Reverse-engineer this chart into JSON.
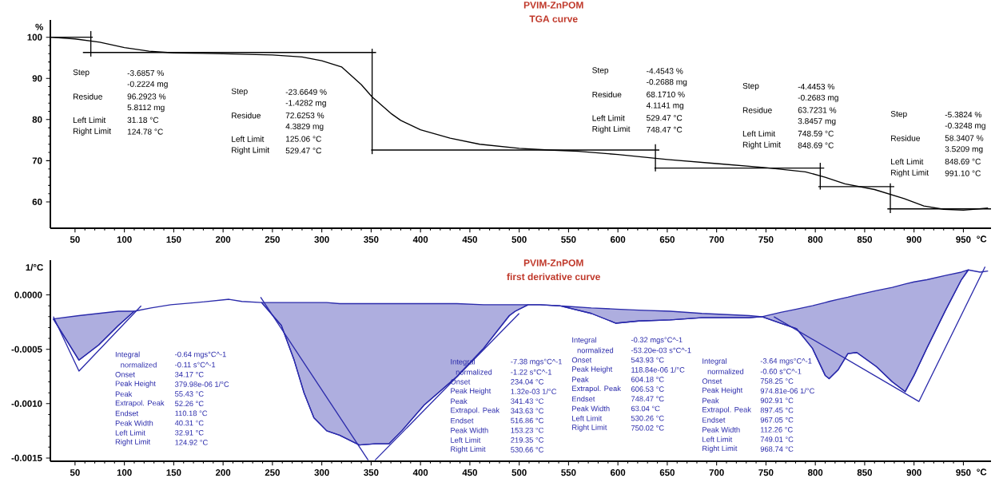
{
  "chart_data": [
    {
      "type": "line",
      "title": "PVIM-ZnPOM",
      "subtitle": "TGA curve",
      "xlabel": "°C",
      "ylabel": "%",
      "xlim": [
        25,
        978
      ],
      "ylim": [
        53.6,
        104.2
      ],
      "xticks": [
        50,
        100,
        150,
        200,
        250,
        300,
        350,
        400,
        450,
        500,
        550,
        600,
        650,
        700,
        750,
        800,
        850,
        900,
        950
      ],
      "yticks": [
        60,
        70,
        80,
        90,
        100
      ],
      "series": [
        {
          "color": "#000000",
          "x": [
            25,
            50,
            75,
            100,
            125,
            150,
            200,
            250,
            280,
            300,
            320,
            340,
            351,
            370,
            380,
            400,
            430,
            460,
            500,
            530,
            560,
            600,
            650,
            700,
            750,
            790,
            810,
            830,
            860,
            890,
            910,
            930,
            950,
            975
          ],
          "values": [
            100,
            99.6,
            98.8,
            97.5,
            96.6,
            96.2,
            96.0,
            95.7,
            95.2,
            94.3,
            92.8,
            88.5,
            85.5,
            81.5,
            79.8,
            77.5,
            75.5,
            74.0,
            73.0,
            72.6,
            72.3,
            71.5,
            70.3,
            69.3,
            68.3,
            67.3,
            66.0,
            64.4,
            63.0,
            60.8,
            59.0,
            58.2,
            58.0,
            58.5
          ]
        },
        {
          "color": "#000000",
          "x": [
            25,
            68
          ],
          "values": [
            100,
            100
          ]
        },
        {
          "color": "#000000",
          "x": [
            66,
            66
          ],
          "values": [
            101.5,
            95.3
          ]
        },
        {
          "color": "#000000",
          "x": [
            58,
            355
          ],
          "values": [
            96.3,
            96.3
          ]
        },
        {
          "color": "#000000",
          "x": [
            351,
            351
          ],
          "values": [
            97.2,
            71.6
          ]
        },
        {
          "color": "#000000",
          "x": [
            350,
            642
          ],
          "values": [
            72.6,
            72.6
          ]
        },
        {
          "color": "#000000",
          "x": [
            638,
            638
          ],
          "values": [
            74,
            67.4
          ]
        },
        {
          "color": "#000000",
          "x": [
            637,
            809
          ],
          "values": [
            68.2,
            68.2
          ]
        },
        {
          "color": "#000000",
          "x": [
            805,
            805
          ],
          "values": [
            69.5,
            63
          ]
        },
        {
          "color": "#000000",
          "x": [
            803,
            880
          ],
          "values": [
            63.7,
            63.7
          ]
        },
        {
          "color": "#000000",
          "x": [
            876,
            876
          ],
          "values": [
            64.5,
            57.3
          ]
        },
        {
          "color": "#000000",
          "x": [
            873,
            978
          ],
          "values": [
            58.3,
            58.3
          ]
        }
      ],
      "annotations": [
        "Step",
        "-3.6857 %",
        "-0.2224 mg",
        "Residue",
        "96.2923 %",
        "5.8112 mg",
        "Left Limit",
        "31.18 °C",
        "Right Limit",
        "124.78 °C",
        "Step",
        "-23.6649 %",
        "-1.4282 mg",
        "Residue",
        "72.6253 %",
        "4.3829 mg",
        "Left Limit",
        "125.06 °C",
        "Right Limit",
        "529.47 °C",
        "Step",
        "-4.4543 %",
        "-0.2688 mg",
        "Residue",
        "68.1710 %",
        "4.1141 mg",
        "Left Limit",
        "529.47 °C",
        "Right Limit",
        "748.47 °C",
        "Step",
        "-4.4453 %",
        "-0.2683 mg",
        "Residue",
        "63.7231 %",
        "3.8457 mg",
        "Left Limit",
        "748.59 °C",
        "Right Limit",
        "848.69 °C",
        "Step",
        "-5.3824 %",
        "-0.3248 mg",
        "Residue",
        "58.3407 %",
        "3.5209 mg",
        "Left Limit",
        "848.69 °C",
        "Right Limit",
        "991.10 °C"
      ]
    },
    {
      "type": "line",
      "title": "PVIM-ZnPOM",
      "subtitle": "first derivative curve",
      "xlabel": "°C",
      "ylabel": "1/°C",
      "xlim": [
        25,
        978
      ],
      "ylim": [
        -0.00153,
        0.00032
      ],
      "xticks": [
        50,
        100,
        150,
        200,
        250,
        300,
        350,
        400,
        450,
        500,
        550,
        600,
        650,
        700,
        750,
        800,
        850,
        900,
        950
      ],
      "yticks": [
        {
          "value": 0,
          "label": "0.0000"
        },
        {
          "value": -0.0005,
          "label": "-0.0005"
        },
        {
          "value": -0.001,
          "label": "-0.0010"
        },
        {
          "value": -0.0015,
          "label": "-0.0015"
        }
      ],
      "series": [
        {
          "color": "#2b2bab",
          "x": [
            28,
            54,
            74,
            94,
            110,
            127,
            147,
            173,
            206,
            219,
            239,
            259,
            272,
            282,
            292,
            305,
            318,
            338,
            354,
            368,
            381,
            404,
            437,
            464,
            490,
            496,
            509,
            521,
            541,
            573,
            598,
            621,
            653,
            685,
            733,
            746,
            765,
            781,
            797,
            810,
            814,
            823,
            833,
            842,
            862,
            878,
            891,
            900,
            913,
            932,
            948,
            955,
            967,
            975
          ],
          "values": [
            -0.00022,
            -0.0006,
            -0.00046,
            -0.00028,
            -0.00015,
            -0.00012,
            -9e-05,
            -7e-05,
            -4e-05,
            -6e-05,
            -7e-05,
            -0.00028,
            -0.0006,
            -0.0009,
            -0.00113,
            -0.00125,
            -0.00129,
            -0.00138,
            -0.00137,
            -0.00137,
            -0.00125,
            -0.00101,
            -0.00075,
            -0.00049,
            -0.00019,
            -0.00015,
            -9e-05,
            -9e-05,
            -0.0001,
            -0.00017,
            -0.00026,
            -0.00024,
            -0.00023,
            -0.00021,
            -0.00021,
            -0.0002,
            -0.00026,
            -0.00031,
            -0.00049,
            -0.00074,
            -0.00077,
            -0.00069,
            -0.00054,
            -0.00053,
            -0.00066,
            -0.0008,
            -0.00089,
            -0.00074,
            -0.00049,
            -0.00014,
            0.00014,
            0.00023,
            0.00021,
            0.00022
          ],
          "lower": [
            -0.00022,
            -0.0006,
            -0.00046,
            -0.00028,
            -0.00015,
            null,
            null,
            null,
            null,
            null,
            -7e-05,
            -0.00028,
            -0.0006,
            -0.0009,
            -0.00113,
            -0.00125,
            -0.00129,
            -0.00138,
            -0.00137,
            -0.00137,
            -0.00125,
            -0.00101,
            -0.00075,
            -0.00049,
            -0.00019,
            -0.00015,
            -9e-05,
            -9e-05,
            -0.0001,
            -0.00017,
            -0.00026,
            -0.00024,
            -0.00023,
            -0.00021,
            -0.00021,
            -0.0002,
            -0.00026,
            -0.00031,
            -0.00049,
            -0.00074,
            -0.00077,
            -0.00069,
            -0.00054,
            -0.00053,
            -0.00066,
            -0.0008,
            -0.00089,
            -0.00074,
            -0.00049,
            -0.00014,
            0.00014,
            0.00023,
            null,
            null
          ],
          "upper": [
            -0.00022,
            -0.00019,
            -0.00017,
            -0.00015,
            -0.00015,
            null,
            null,
            null,
            null,
            null,
            -7e-05,
            -7e-05,
            -7e-05,
            -7e-05,
            -7e-05,
            -7e-05,
            -8e-05,
            -8e-05,
            -8e-05,
            -8e-05,
            -8e-05,
            -8e-05,
            -8e-05,
            -9e-05,
            -9e-05,
            -9e-05,
            -9e-05,
            -9e-05,
            -0.0001,
            -0.00012,
            -0.00013,
            -0.00014,
            -0.00015,
            -0.00017,
            -0.00019,
            -0.0002,
            -0.00016,
            -0.00013,
            -0.0001,
            -7e-05,
            -6e-05,
            -4e-05,
            -2e-05,
            0,
            4e-05,
            7e-05,
            0.0001,
            0.00012,
            0.00014,
            0.00018,
            0.00021,
            0.00023,
            null,
            null
          ]
        },
        {
          "color": "#2b2bab",
          "x": [
            28,
            54,
            117
          ],
          "values": [
            -0.0002,
            -0.0007,
            -0.0001
          ]
        },
        {
          "color": "#2b2bab",
          "x": [
            238,
            347
          ],
          "values": [
            -2e-05,
            -0.00152
          ]
        },
        {
          "color": "#2b2bab",
          "x": [
            354,
            500
          ],
          "values": [
            -0.00152,
            -0.00017
          ]
        },
        {
          "color": "#2b2bab",
          "x": [
            758,
            905,
            972
          ],
          "values": [
            -0.0002,
            -0.00098,
            0.00026
          ]
        }
      ],
      "annotations": [
        "Integral",
        "-0.64 mgs°C^-1",
        "normalized",
        "-0.11 s°C^-1",
        "Onset",
        "34.17 °C",
        "Peak Height",
        "379.98e-06 1/°C",
        "Peak",
        "55.43 °C",
        "Extrapol. Peak",
        "52.26 °C",
        "Endset",
        "110.18 °C",
        "Peak Width",
        "40.31 °C",
        "Left Limit",
        "32.91 °C",
        "Right Limit",
        "124.92 °C",
        "Integral",
        "-7.38 mgs°C^-1",
        "normalized",
        "-1.22 s°C^-1",
        "Onset",
        "234.04 °C",
        "Peak Height",
        "1.32e-03 1/°C",
        "Peak",
        "341.43 °C",
        "Extrapol. Peak",
        "343.63 °C",
        "Endset",
        "516.86 °C",
        "Peak Width",
        "153.23 °C",
        "Left Limit",
        "219.35 °C",
        "Right Limit",
        "530.66 °C",
        "Integral",
        "-0.32 mgs°C^-1",
        "normalized",
        "-53.20e-03 s°C^-1",
        "Onset",
        "543.93 °C",
        "Peak Height",
        "118.84e-06 1/°C",
        "Peak",
        "604.18 °C",
        "Extrapol. Peak",
        "606.53 °C",
        "Endset",
        "748.47 °C",
        "Peak Width",
        "63.04 °C",
        "Left Limit",
        "530.26 °C",
        "Right Limit",
        "750.02 °C",
        "Integral",
        "-3.64 mgs°C^-1",
        "normalized",
        "-0.60 s°C^-1",
        "Onset",
        "758.25 °C",
        "Peak Height",
        "974.81e-06 1/°C",
        "Peak",
        "902.91 °C",
        "Extrapol. Peak",
        "897.45 °C",
        "Endset",
        "967.05 °C",
        "Peak Width",
        "112.26 °C",
        "Left Limit",
        "749.01 °C",
        "Right Limit",
        "968.74 °C"
      ]
    }
  ]
}
